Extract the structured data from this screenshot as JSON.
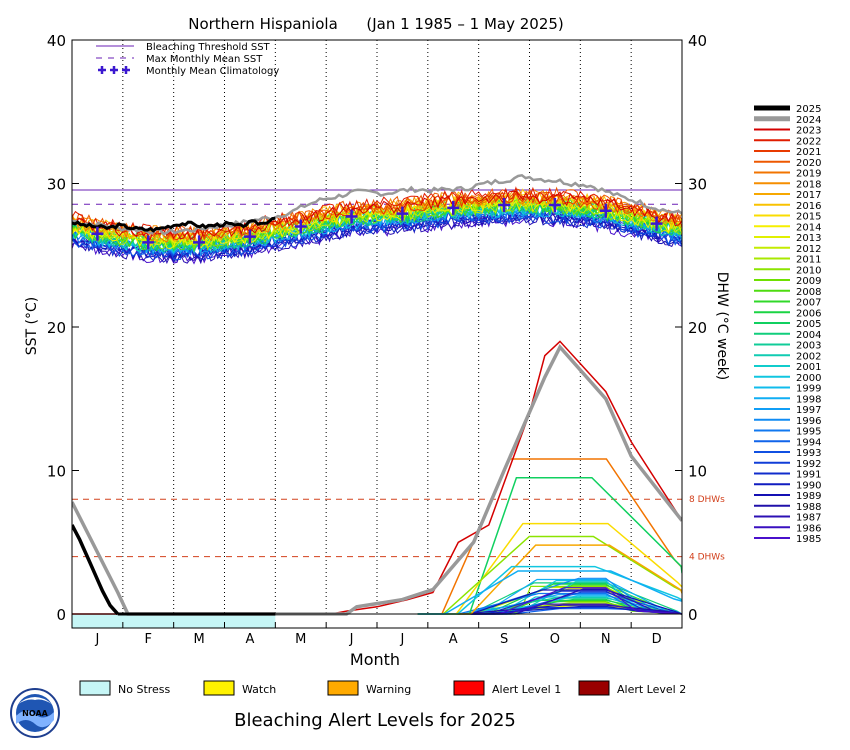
{
  "chart_data": {
    "type": "line",
    "title": "Northern Hispaniola      (Jan 1 1985 – 1 May 2025)",
    "xlabel": "Month",
    "ylabel_left": "SST (°C)",
    "ylabel_right": "DHW (°C week)",
    "ylim": [
      0,
      40
    ],
    "months": [
      "J",
      "F",
      "M",
      "A",
      "M",
      "J",
      "J",
      "A",
      "S",
      "O",
      "N",
      "D"
    ],
    "yticks_left": [
      "0",
      "10",
      "20",
      "30",
      "40"
    ],
    "yticks_right": [
      "0",
      "10",
      "20",
      "30",
      "40"
    ],
    "grid": "vertical dotted lines at month boundaries",
    "legend_top": [
      {
        "label": "Bleaching Threshold SST",
        "style": "solid",
        "color": "#6a1fb5"
      },
      {
        "label": "Max Monthly Mean SST",
        "style": "dashed",
        "color": "#6a1fb5"
      },
      {
        "label": "Monthly Mean Climatology",
        "style": "plus",
        "color": "#3b18d0"
      }
    ],
    "thresholds": {
      "bleaching_threshold_sst": 29.55,
      "max_monthly_mean_sst": 28.55,
      "dhw_lines": [
        {
          "value": 8,
          "label": "8 DHWs",
          "color": "#d2401c"
        },
        {
          "value": 4,
          "label": "4 DHWs",
          "color": "#d2401c"
        }
      ]
    },
    "climatology_monthly_mean": [
      26.5,
      25.9,
      25.9,
      26.3,
      27.0,
      27.7,
      27.9,
      28.3,
      28.5,
      28.5,
      28.1,
      27.2
    ],
    "year_legend": [
      {
        "year": "2025",
        "color": "#000000"
      },
      {
        "year": "2024",
        "color": "#999999"
      },
      {
        "year": "2023",
        "color": "#d40000"
      },
      {
        "year": "2022",
        "color": "#e01c00"
      },
      {
        "year": "2021",
        "color": "#e83a00"
      },
      {
        "year": "2020",
        "color": "#ee5800"
      },
      {
        "year": "2019",
        "color": "#f27400"
      },
      {
        "year": "2018",
        "color": "#f58e00"
      },
      {
        "year": "2017",
        "color": "#f7a800"
      },
      {
        "year": "2016",
        "color": "#f9c200"
      },
      {
        "year": "2015",
        "color": "#fadc00"
      },
      {
        "year": "2014",
        "color": "#f6ef00"
      },
      {
        "year": "2013",
        "color": "#e0f000"
      },
      {
        "year": "2012",
        "color": "#c4ec00"
      },
      {
        "year": "2011",
        "color": "#a8e800"
      },
      {
        "year": "2010",
        "color": "#8ce400"
      },
      {
        "year": "2009",
        "color": "#6ee000"
      },
      {
        "year": "2008",
        "color": "#4edc10"
      },
      {
        "year": "2007",
        "color": "#30d82a"
      },
      {
        "year": "2006",
        "color": "#1ad444"
      },
      {
        "year": "2005",
        "color": "#10d060"
      },
      {
        "year": "2004",
        "color": "#10ce7c"
      },
      {
        "year": "2003",
        "color": "#10cc98"
      },
      {
        "year": "2002",
        "color": "#10ccb2"
      },
      {
        "year": "2001",
        "color": "#10cccc"
      },
      {
        "year": "2000",
        "color": "#10c6e0"
      },
      {
        "year": "1999",
        "color": "#10bcec"
      },
      {
        "year": "1998",
        "color": "#10aef4"
      },
      {
        "year": "1997",
        "color": "#109ef6"
      },
      {
        "year": "1996",
        "color": "#108cf4"
      },
      {
        "year": "1995",
        "color": "#1078f0"
      },
      {
        "year": "1994",
        "color": "#1064ea"
      },
      {
        "year": "1993",
        "color": "#1050e2"
      },
      {
        "year": "1992",
        "color": "#103ed8"
      },
      {
        "year": "1991",
        "color": "#102ccc"
      },
      {
        "year": "1990",
        "color": "#101cc0"
      },
      {
        "year": "1989",
        "color": "#1410b4"
      },
      {
        "year": "1988",
        "color": "#2010aa"
      },
      {
        "year": "1987",
        "color": "#2c10b4"
      },
      {
        "year": "1986",
        "color": "#3a10c0"
      },
      {
        "year": "1985",
        "color": "#4a10cc"
      }
    ],
    "sst_2025": {
      "start_month": 0,
      "end_month": 4.0,
      "values": [
        27.3,
        27.1,
        27.0,
        26.9,
        27.1,
        26.9,
        26.8,
        26.8,
        27.0,
        27.2,
        27.2,
        27.0,
        27.1,
        27.2,
        27.0,
        27.3,
        27.2,
        27.7
      ]
    },
    "sst_2024": {
      "start_month": 0,
      "end_month": 12.0,
      "values": [
        27.4,
        27.2,
        27.1,
        26.9,
        26.8,
        26.7,
        26.6,
        26.7,
        26.8,
        27.0,
        27.1,
        27.3,
        27.5,
        27.7,
        28.0,
        28.5,
        28.9,
        29.1,
        29.4,
        29.4,
        29.3,
        29.5,
        29.6,
        29.5,
        29.6,
        29.6,
        29.9,
        30.1,
        30.3,
        30.5,
        30.3,
        30.2,
        30.0,
        29.9,
        29.5,
        29.1,
        28.8,
        28.4,
        28.1,
        27.9
      ]
    },
    "dhw_2025": {
      "start_month": 0,
      "end_month": 0.9,
      "values": [
        6.2,
        5.2,
        4.0,
        2.8,
        1.6,
        0.6,
        0.0
      ]
    },
    "dhw_2024": {
      "x": [
        0,
        0.9,
        1.1,
        4.0,
        5.4,
        5.6,
        6.5,
        7.1,
        7.9,
        8.5,
        9.3,
        9.6,
        10.5,
        11.0,
        12.0
      ],
      "values": [
        7.8,
        1.5,
        0.0,
        0.0,
        0.0,
        0.5,
        1.0,
        1.7,
        5.0,
        10.0,
        16.5,
        18.6,
        15.0,
        11.0,
        6.5
      ]
    },
    "dhw_2023": {
      "x": [
        0,
        5.1,
        5.4,
        6.0,
        6.6,
        7.1,
        7.6,
        8.2,
        9.0,
        9.3,
        9.6,
        10.5,
        11.0,
        12.0
      ],
      "values": [
        0.0,
        0.0,
        0.2,
        0.5,
        1.0,
        1.5,
        5.0,
        6.2,
        14.0,
        18.0,
        19.0,
        15.5,
        12.0,
        6.5
      ]
    },
    "dhw_notable_years": [
      {
        "year": "2019",
        "peak": 10.8
      },
      {
        "year": "2005",
        "peak": 9.5
      },
      {
        "year": "2015",
        "peak": 6.3
      },
      {
        "year": "2010",
        "peak": 5.4
      },
      {
        "year": "2017",
        "peak": 4.8
      },
      {
        "year": "2000",
        "peak": 3.3
      },
      {
        "year": "1998",
        "peak": 3.0
      }
    ],
    "bleaching_alert_bar": {
      "2025_status": "No Stress",
      "start_month": 0,
      "end_month": 4.0
    }
  },
  "alert_legend": [
    {
      "label": "No Stress",
      "color": "#c6f6f6"
    },
    {
      "label": "Watch",
      "color": "#fff200"
    },
    {
      "label": "Warning",
      "color": "#ffaa00"
    },
    {
      "label": "Alert Level 1",
      "color": "#ff0000"
    },
    {
      "label": "Alert Level 2",
      "color": "#990000"
    }
  ],
  "footer_title": "Bleaching Alert Levels for 2025",
  "logo_text": "NOAA"
}
